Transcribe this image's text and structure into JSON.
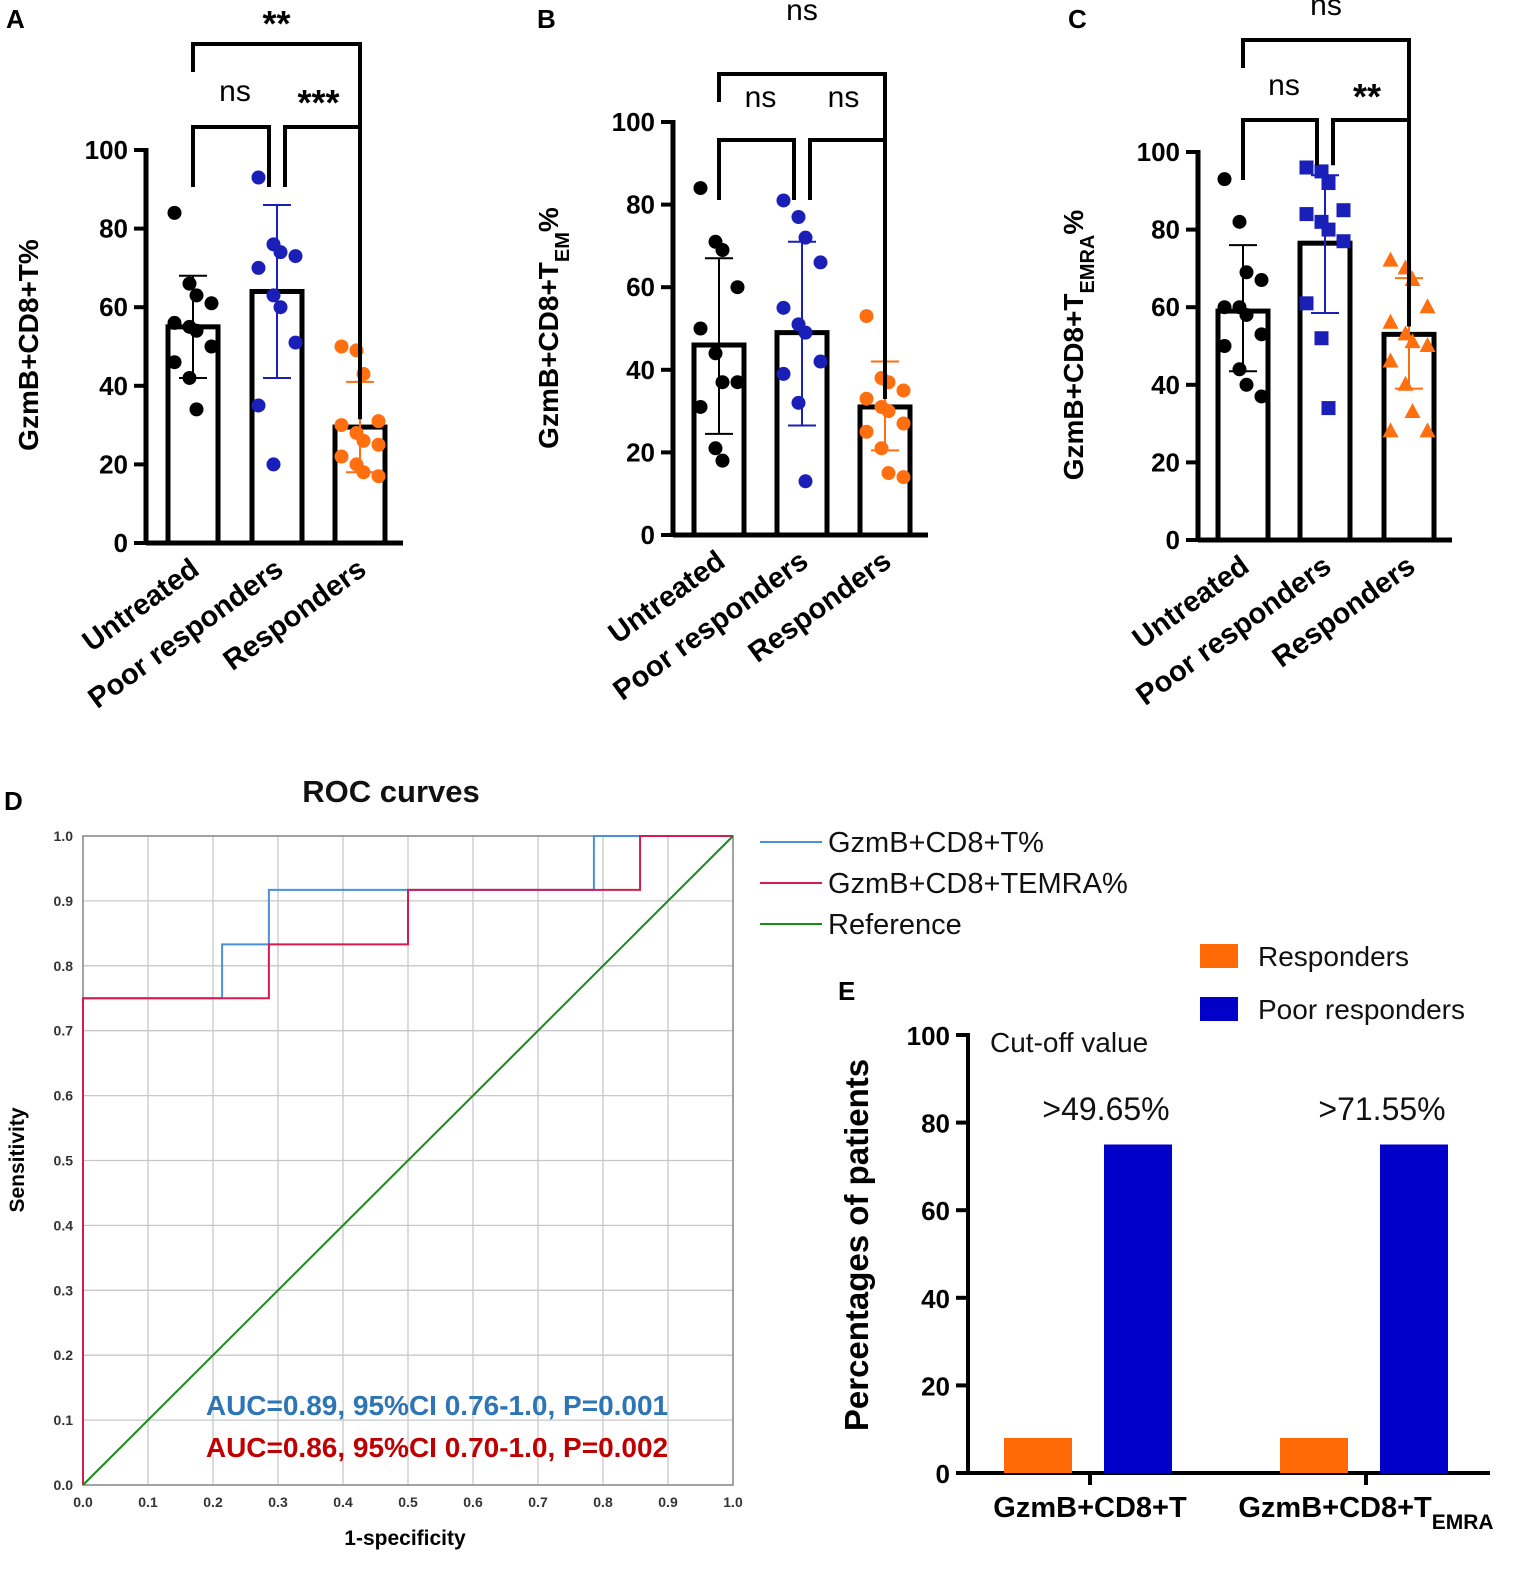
{
  "colors": {
    "untreated": "#000000",
    "poor": "#1a1fb8",
    "responders": "#ff6f0f",
    "roc_t": "#4a8fe0",
    "roc_temra": "#d81b4f",
    "roc_ref": "#1a8a1a",
    "auc_t_text": "#2e75b6",
    "auc_temra_text": "#c00000",
    "e_responders": "#ff6a06",
    "e_poor": "#0000c8"
  },
  "chart_data": [
    {
      "panel": "A",
      "type": "bar",
      "ylabel": "GzmB+CD8+T%",
      "ylim": [
        0,
        100
      ],
      "yticks": [
        "0",
        "20",
        "40",
        "60",
        "80",
        "100"
      ],
      "categories": [
        "Untreated",
        "Poor responders",
        "Responders"
      ],
      "marker": [
        "circle",
        "circle",
        "circle"
      ],
      "means": [
        55,
        64,
        29.5
      ],
      "sd_low": [
        42,
        42,
        18
      ],
      "sd_high": [
        68,
        86,
        41
      ],
      "points": [
        [
          84,
          66,
          63,
          61,
          56,
          55,
          54,
          50,
          46,
          42,
          34
        ],
        [
          93,
          76,
          74,
          73,
          70,
          63,
          60,
          51,
          35,
          20
        ],
        [
          50,
          49,
          43,
          31,
          30,
          28,
          26,
          25,
          22,
          20,
          18,
          17
        ]
      ],
      "comparisons": [
        {
          "from": 0,
          "to": 1,
          "label": "ns"
        },
        {
          "from": 1,
          "to": 2,
          "label": "***"
        },
        {
          "from": 0,
          "to": 2,
          "label": "**"
        }
      ]
    },
    {
      "panel": "B",
      "type": "bar",
      "ylabel": "GzmB+CD8+T",
      "ylabel_sub": "EM",
      "ylabel_suffix": "%",
      "ylim": [
        0,
        100
      ],
      "yticks": [
        "0",
        "20",
        "40",
        "60",
        "80",
        "100"
      ],
      "categories": [
        "Untreated",
        "Poor responders",
        "Responders"
      ],
      "marker": [
        "circle",
        "circle",
        "circle"
      ],
      "means": [
        46,
        49,
        31
      ],
      "sd_low": [
        24.5,
        26.5,
        20.5
      ],
      "sd_high": [
        67,
        71,
        42
      ],
      "points": [
        [
          84,
          71,
          69,
          60,
          50,
          44,
          37,
          37,
          31,
          21,
          18
        ],
        [
          81,
          77,
          72,
          66,
          55,
          51,
          49,
          42,
          39,
          32,
          13
        ],
        [
          53,
          38,
          37,
          35,
          33,
          31,
          30,
          27,
          25,
          21,
          15,
          14
        ]
      ],
      "comparisons": [
        {
          "from": 0,
          "to": 1,
          "label": "ns"
        },
        {
          "from": 1,
          "to": 2,
          "label": "ns"
        },
        {
          "from": 0,
          "to": 2,
          "label": "ns"
        }
      ]
    },
    {
      "panel": "C",
      "type": "bar",
      "ylabel": "GzmB+CD8+T",
      "ylabel_sub": "EMRA",
      "ylabel_suffix": "%",
      "ylim": [
        0,
        100
      ],
      "yticks": [
        "0",
        "20",
        "40",
        "60",
        "80",
        "100"
      ],
      "categories": [
        "Untreated",
        "Poor responders",
        "Responders"
      ],
      "marker": [
        "circle",
        "square",
        "triangle"
      ],
      "means": [
        59,
        76.5,
        53
      ],
      "sd_low": [
        43.5,
        58.5,
        39
      ],
      "sd_high": [
        76,
        94,
        67.5
      ],
      "points": [
        [
          93,
          82,
          69,
          67,
          60,
          60,
          58,
          53,
          50,
          44,
          40,
          37
        ],
        [
          96,
          95,
          92,
          85,
          84,
          82,
          80,
          77,
          61,
          52,
          34
        ],
        [
          72,
          70,
          67,
          60,
          56,
          53,
          51,
          50,
          46,
          40,
          33,
          28,
          28
        ]
      ],
      "comparisons": [
        {
          "from": 0,
          "to": 1,
          "label": "ns"
        },
        {
          "from": 1,
          "to": 2,
          "label": "**"
        },
        {
          "from": 0,
          "to": 2,
          "label": "ns"
        }
      ]
    },
    {
      "panel": "D",
      "type": "line",
      "title": "ROC curves",
      "xlabel": "1-specificity",
      "ylabel": "Sensitivity",
      "xlim": [
        0,
        1
      ],
      "ylim": [
        0,
        1
      ],
      "xticks": [
        "0.0",
        "0.1",
        "0.2",
        "0.3",
        "0.4",
        "0.5",
        "0.6",
        "0.7",
        "0.8",
        "0.9",
        "1.0"
      ],
      "yticks": [
        "0.0",
        "0.1",
        "0.2",
        "0.3",
        "0.4",
        "0.5",
        "0.6",
        "0.7",
        "0.8",
        "0.9",
        "1.0"
      ],
      "series": [
        {
          "name": "GzmB+CD8+T%",
          "x": [
            0,
            0,
            0.214,
            0.214,
            0.286,
            0.286,
            0.786,
            0.786,
            1.0
          ],
          "y": [
            0,
            0.75,
            0.75,
            0.833,
            0.833,
            0.917,
            0.917,
            1.0,
            1.0
          ]
        },
        {
          "name": "GzmB+CD8+TEMRA%",
          "x": [
            0,
            0,
            0.286,
            0.286,
            0.5,
            0.5,
            0.857,
            0.857,
            1.0
          ],
          "y": [
            0,
            0.75,
            0.75,
            0.833,
            0.833,
            0.917,
            0.917,
            1.0,
            1.0
          ]
        },
        {
          "name": "Reference",
          "x": [
            0,
            1
          ],
          "y": [
            0,
            1
          ]
        }
      ],
      "annotations": [
        "AUC=0.89, 95%CI 0.76-1.0, P=0.001",
        "AUC=0.86, 95%CI 0.70-1.0, P=0.002"
      ]
    },
    {
      "panel": "E",
      "type": "bar",
      "ylabel": "Percentages of patients",
      "ylim": [
        0,
        100
      ],
      "yticks": [
        "0",
        "20",
        "40",
        "60",
        "80",
        "100"
      ],
      "categories": [
        "GzmB+CD8+T",
        "GzmB+CD8+T"
      ],
      "category_subs": [
        "",
        "EMRA"
      ],
      "series": [
        {
          "name": "Responders",
          "values": [
            8,
            8
          ]
        },
        {
          "name": "Poor responders",
          "values": [
            75,
            75
          ]
        }
      ],
      "cutoff_title": "Cut-off value",
      "cutoff_labels": [
        ">49.65%",
        ">71.55%"
      ]
    }
  ]
}
